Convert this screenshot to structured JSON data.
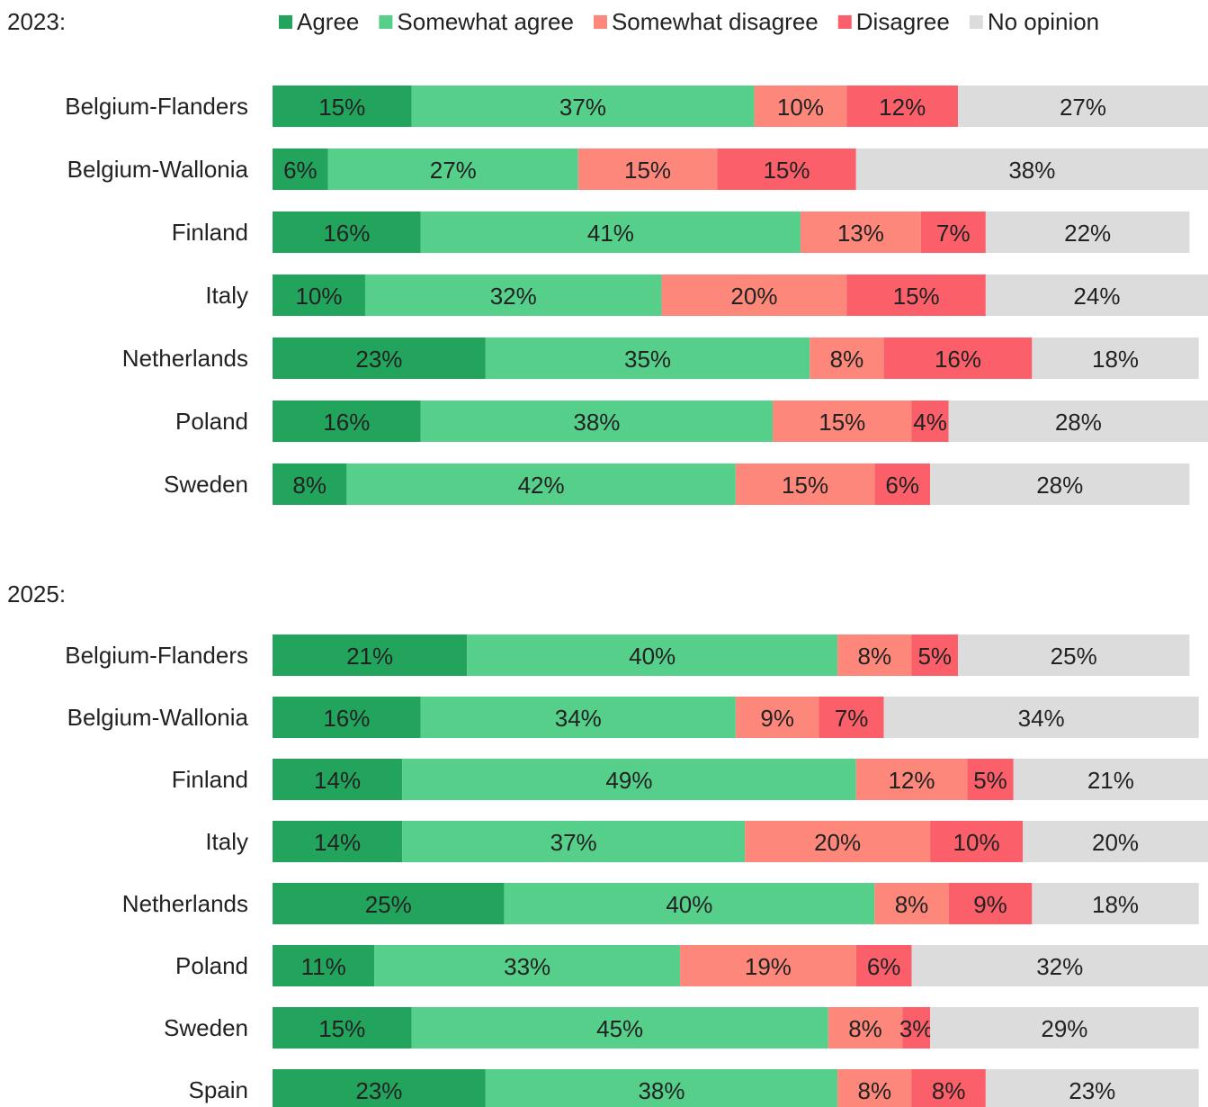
{
  "chart_data": [
    {
      "type": "stacked-bar-horizontal",
      "title": "2023:",
      "categories": [
        "Belgium-Flanders",
        "Belgium-Wallonia",
        "Finland",
        "Italy",
        "Netherlands",
        "Poland",
        "Sweden"
      ],
      "series": [
        {
          "name": "Agree",
          "color": "#22a45d",
          "values": [
            15,
            6,
            16,
            10,
            23,
            16,
            8
          ],
          "value_labels": [
            "15%",
            "6%",
            "16%",
            "10%",
            "23%",
            "16%",
            "8%"
          ]
        },
        {
          "name": "Somewhat agree",
          "color": "#55cf8a",
          "values": [
            37,
            27,
            41,
            32,
            35,
            38,
            42
          ],
          "value_labels": [
            "37%",
            "27%",
            "41%",
            "32%",
            "35%",
            "38%",
            "42%"
          ]
        },
        {
          "name": "Somewhat disagree",
          "color": "#fd877a",
          "values": [
            10,
            15,
            13,
            20,
            8,
            15,
            15
          ],
          "value_labels": [
            "10%",
            "15%",
            "13%",
            "20%",
            "8%",
            "15%",
            "15%"
          ]
        },
        {
          "name": "Disagree",
          "color": "#fa5f6a",
          "values": [
            12,
            15,
            7,
            15,
            16,
            4,
            6
          ],
          "value_labels": [
            "12%",
            "15%",
            "7%",
            "15%",
            "16%",
            "4%",
            "6%"
          ]
        },
        {
          "name": "No opinion",
          "color": "#dcdcdc",
          "values": [
            27,
            38,
            22,
            24,
            18,
            28,
            28
          ],
          "value_labels": [
            "27%",
            "38%",
            "22%",
            "24%",
            "18%",
            "28%",
            "28%"
          ]
        }
      ]
    },
    {
      "type": "stacked-bar-horizontal",
      "title": "2025:",
      "categories": [
        "Belgium-Flanders",
        "Belgium-Wallonia",
        "Finland",
        "Italy",
        "Netherlands",
        "Poland",
        "Sweden",
        "Spain"
      ],
      "series": [
        {
          "name": "Agree",
          "color": "#22a45d",
          "values": [
            21,
            16,
            14,
            14,
            25,
            11,
            15,
            23
          ],
          "value_labels": [
            "21%",
            "16%",
            "14%",
            "14%",
            "25%",
            "11%",
            "15%",
            "23%"
          ]
        },
        {
          "name": "Somewhat agree",
          "color": "#55cf8a",
          "values": [
            40,
            34,
            49,
            37,
            40,
            33,
            45,
            38
          ],
          "value_labels": [
            "40%",
            "34%",
            "49%",
            "37%",
            "40%",
            "33%",
            "45%",
            "38%"
          ]
        },
        {
          "name": "Somewhat disagree",
          "color": "#fd877a",
          "values": [
            8,
            9,
            12,
            20,
            8,
            19,
            8,
            8
          ],
          "value_labels": [
            "8%",
            "9%",
            "12%",
            "20%",
            "8%",
            "19%",
            "8%",
            "8%"
          ]
        },
        {
          "name": "Disagree",
          "color": "#fa5f6a",
          "values": [
            5,
            7,
            5,
            10,
            9,
            6,
            3,
            8
          ],
          "value_labels": [
            "5%",
            "7%",
            "5%",
            "10%",
            "9%",
            "6%",
            "3%",
            "8%"
          ]
        },
        {
          "name": "No opinion",
          "color": "#dcdcdc",
          "values": [
            25,
            34,
            21,
            20,
            18,
            32,
            29,
            23
          ],
          "value_labels": [
            "25%",
            "34%",
            "21%",
            "20%",
            "18%",
            "32%",
            "29%",
            "23%"
          ]
        }
      ]
    }
  ]
}
